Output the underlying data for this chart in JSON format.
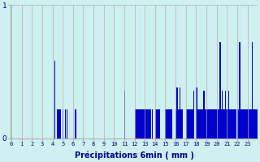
{
  "xlabel": "Précipitations 6min ( mm )",
  "background_color": "#cff0f0",
  "bar_color": "#0000cc",
  "grid_color": "#b0b0b0",
  "text_color": "#00008b",
  "ylim": [
    0,
    1.0
  ],
  "xtick_labels": [
    "0",
    "1",
    "2",
    "3",
    "4",
    "5",
    "6",
    "7",
    "8",
    "9",
    "10",
    "11",
    "12",
    "13",
    "14",
    "15",
    "16",
    "17",
    "18",
    "19",
    "20",
    "21",
    "22",
    "23"
  ],
  "heights": [
    0,
    0,
    0,
    0,
    0,
    0,
    0,
    0,
    0,
    0,
    0,
    0,
    0,
    0,
    0,
    0,
    0,
    0,
    0,
    0,
    0,
    0,
    0,
    0,
    0,
    0,
    0,
    0,
    0,
    0,
    0,
    0,
    0,
    0,
    0,
    0,
    0,
    0,
    0,
    0,
    0,
    0,
    0.58,
    0,
    0.22,
    0.22,
    0.22,
    0.22,
    0,
    0,
    0.22,
    0,
    0.22,
    0,
    0.22,
    0,
    0,
    0,
    0,
    0,
    0,
    0,
    0.22,
    0,
    0,
    0,
    0,
    0,
    0,
    0,
    0,
    0,
    0,
    0,
    0,
    0,
    0,
    0,
    0,
    0,
    0,
    0,
    0,
    0,
    0,
    0,
    0,
    0,
    0,
    0,
    0,
    0,
    0,
    0,
    0,
    0,
    0,
    0,
    0,
    0,
    0,
    0,
    0,
    0,
    0,
    0,
    0,
    0,
    0,
    0,
    0.36,
    0,
    0,
    0,
    0,
    0,
    0,
    0,
    0,
    0,
    0.22,
    0.22,
    0.22,
    0.22,
    0.22,
    0.22,
    0.22,
    0.22,
    0.22,
    0.22,
    0.22,
    0.22,
    0.22,
    0.22,
    0.22,
    0.22,
    0,
    0.22,
    0,
    0,
    0.22,
    0.22,
    0.22,
    0.22,
    0.22,
    0,
    0,
    0,
    0,
    0,
    0.22,
    0.22,
    0.22,
    0.22,
    0.22,
    0.22,
    0.22,
    0,
    0,
    0,
    0.22,
    0.38,
    0.22,
    0.22,
    0.38,
    0.22,
    0.22,
    0,
    0,
    0,
    0.22,
    0.22,
    0.22,
    0.22,
    0.22,
    0.22,
    0.22,
    0.36,
    0,
    0,
    0.38,
    0.22,
    0.22,
    0.22,
    0.22,
    0.22,
    0.22,
    0.36,
    0.22,
    0.22,
    0.22,
    0.22,
    0.22,
    0.22,
    0.22,
    0.22,
    0.22,
    0.22,
    0.22,
    0.22,
    0.22,
    0.22,
    0.22,
    0.72,
    0.22,
    0.36,
    0.22,
    0.22,
    0.36,
    0.22,
    0.22,
    0.36,
    0.22,
    0.22,
    0.22,
    0.22,
    0.22,
    0.22,
    0.22,
    0,
    0.22,
    0.22,
    0.72,
    0.22,
    0.22,
    0.22,
    0.22,
    0.22,
    0.22,
    0.22,
    0.22,
    0.22,
    0.22,
    0.22,
    0.72,
    0.22,
    0.22,
    0.22,
    0.22,
    0.22
  ]
}
